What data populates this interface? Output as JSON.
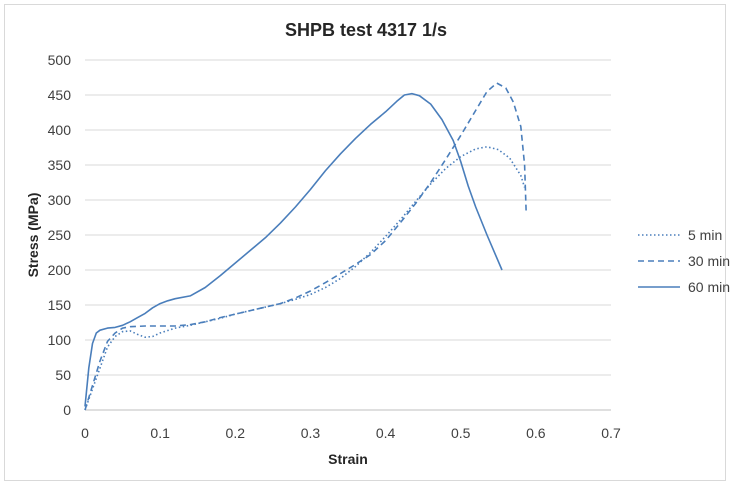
{
  "chart_data": {
    "type": "line",
    "title": "SHPB test 4317 1/s",
    "xlabel": "Strain",
    "ylabel": "Stress (MPa)",
    "xlim": [
      0,
      0.7
    ],
    "ylim": [
      0,
      500
    ],
    "x_ticks": [
      "0",
      "0.1",
      "0.2",
      "0.3",
      "0.4",
      "0.5",
      "0.6",
      "0.7"
    ],
    "y_ticks": [
      "0",
      "50",
      "100",
      "150",
      "200",
      "250",
      "300",
      "350",
      "400",
      "450",
      "500"
    ],
    "grid": "horizontal",
    "legend_position": "right",
    "color": "#4a7ebb",
    "series": [
      {
        "name": "5 min",
        "dash": "dotted",
        "points": [
          [
            0,
            0
          ],
          [
            0.01,
            30
          ],
          [
            0.02,
            60
          ],
          [
            0.03,
            90
          ],
          [
            0.04,
            105
          ],
          [
            0.05,
            112
          ],
          [
            0.06,
            113
          ],
          [
            0.07,
            108
          ],
          [
            0.08,
            104
          ],
          [
            0.09,
            105
          ],
          [
            0.1,
            110
          ],
          [
            0.12,
            117
          ],
          [
            0.14,
            121
          ],
          [
            0.16,
            126
          ],
          [
            0.18,
            131
          ],
          [
            0.2,
            137
          ],
          [
            0.22,
            142
          ],
          [
            0.24,
            147
          ],
          [
            0.26,
            152
          ],
          [
            0.28,
            158
          ],
          [
            0.3,
            165
          ],
          [
            0.32,
            175
          ],
          [
            0.34,
            188
          ],
          [
            0.36,
            205
          ],
          [
            0.38,
            225
          ],
          [
            0.4,
            248
          ],
          [
            0.42,
            272
          ],
          [
            0.44,
            298
          ],
          [
            0.46,
            323
          ],
          [
            0.48,
            345
          ],
          [
            0.5,
            362
          ],
          [
            0.52,
            373
          ],
          [
            0.535,
            376
          ],
          [
            0.55,
            372
          ],
          [
            0.565,
            360
          ],
          [
            0.58,
            335
          ],
          [
            0.585,
            318
          ]
        ]
      },
      {
        "name": "30 min",
        "dash": "dashed",
        "points": [
          [
            0,
            0
          ],
          [
            0.01,
            35
          ],
          [
            0.02,
            70
          ],
          [
            0.03,
            98
          ],
          [
            0.04,
            110
          ],
          [
            0.05,
            117
          ],
          [
            0.06,
            119
          ],
          [
            0.08,
            120
          ],
          [
            0.1,
            120
          ],
          [
            0.12,
            120
          ],
          [
            0.14,
            122
          ],
          [
            0.16,
            126
          ],
          [
            0.18,
            132
          ],
          [
            0.2,
            137
          ],
          [
            0.22,
            142
          ],
          [
            0.24,
            147
          ],
          [
            0.26,
            152
          ],
          [
            0.28,
            160
          ],
          [
            0.3,
            170
          ],
          [
            0.32,
            182
          ],
          [
            0.34,
            195
          ],
          [
            0.36,
            208
          ],
          [
            0.38,
            222
          ],
          [
            0.4,
            242
          ],
          [
            0.42,
            268
          ],
          [
            0.44,
            295
          ],
          [
            0.46,
            325
          ],
          [
            0.48,
            358
          ],
          [
            0.5,
            392
          ],
          [
            0.52,
            428
          ],
          [
            0.535,
            455
          ],
          [
            0.548,
            467
          ],
          [
            0.56,
            460
          ],
          [
            0.57,
            440
          ],
          [
            0.58,
            405
          ],
          [
            0.585,
            350
          ],
          [
            0.587,
            285
          ]
        ]
      },
      {
        "name": "60 min",
        "dash": "solid",
        "points": [
          [
            0,
            5
          ],
          [
            0.005,
            60
          ],
          [
            0.01,
            95
          ],
          [
            0.015,
            110
          ],
          [
            0.02,
            114
          ],
          [
            0.03,
            117
          ],
          [
            0.04,
            118
          ],
          [
            0.05,
            121
          ],
          [
            0.06,
            126
          ],
          [
            0.07,
            132
          ],
          [
            0.08,
            138
          ],
          [
            0.09,
            146
          ],
          [
            0.1,
            152
          ],
          [
            0.11,
            156
          ],
          [
            0.12,
            159
          ],
          [
            0.14,
            163
          ],
          [
            0.16,
            175
          ],
          [
            0.18,
            192
          ],
          [
            0.2,
            210
          ],
          [
            0.22,
            228
          ],
          [
            0.24,
            246
          ],
          [
            0.26,
            267
          ],
          [
            0.28,
            290
          ],
          [
            0.3,
            315
          ],
          [
            0.32,
            342
          ],
          [
            0.34,
            366
          ],
          [
            0.36,
            388
          ],
          [
            0.38,
            408
          ],
          [
            0.4,
            426
          ],
          [
            0.415,
            441
          ],
          [
            0.425,
            450
          ],
          [
            0.435,
            452
          ],
          [
            0.445,
            449
          ],
          [
            0.46,
            437
          ],
          [
            0.475,
            415
          ],
          [
            0.49,
            385
          ],
          [
            0.5,
            355
          ],
          [
            0.51,
            320
          ],
          [
            0.52,
            290
          ],
          [
            0.535,
            250
          ],
          [
            0.555,
            200
          ]
        ]
      }
    ]
  }
}
